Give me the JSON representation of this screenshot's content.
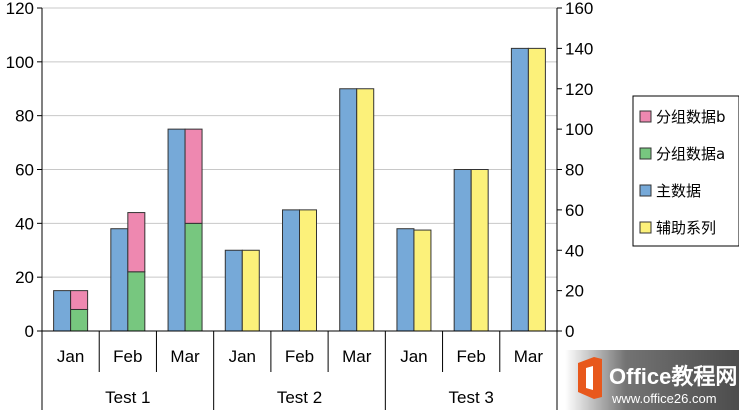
{
  "chart_data": {
    "type": "bar",
    "primary_axis": {
      "min": 0,
      "max": 120,
      "step": 20,
      "ticks": [
        "0",
        "20",
        "40",
        "60",
        "80",
        "100",
        "120"
      ]
    },
    "secondary_axis": {
      "min": 0,
      "max": 160,
      "step": 20,
      "ticks": [
        "0",
        "20",
        "40",
        "60",
        "80",
        "100",
        "120",
        "140",
        "160"
      ]
    },
    "grid": true,
    "legend_position": "right",
    "groups": [
      "Test 1",
      "Test 2",
      "Test 3"
    ],
    "categories": [
      "Jan",
      "Feb",
      "Mar",
      "Jan",
      "Feb",
      "Mar",
      "Jan",
      "Feb",
      "Mar"
    ],
    "series": [
      {
        "name": "分组数据b",
        "color": "#EE88B0",
        "axis": "primary",
        "stacked_on": "分组数据a",
        "values": [
          7,
          22,
          35,
          null,
          null,
          null,
          null,
          null,
          null
        ]
      },
      {
        "name": "分组数据a",
        "color": "#77C77F",
        "axis": "primary",
        "values": [
          8,
          22,
          40,
          null,
          null,
          null,
          null,
          null,
          null
        ]
      },
      {
        "name": "主数据",
        "color": "#76A9D8",
        "axis": "primary",
        "values": [
          15,
          38,
          75,
          30,
          45,
          90,
          38,
          60,
          105
        ]
      },
      {
        "name": "辅助系列",
        "color": "#FCF17A",
        "axis": "secondary",
        "values": [
          null,
          null,
          null,
          40,
          60,
          120,
          50,
          80,
          140
        ]
      }
    ]
  },
  "watermark": {
    "line1": "Office教程网",
    "line2": "www.office26.com",
    "colors": {
      "logo": "#E8581C",
      "text": "#ffffff"
    }
  }
}
